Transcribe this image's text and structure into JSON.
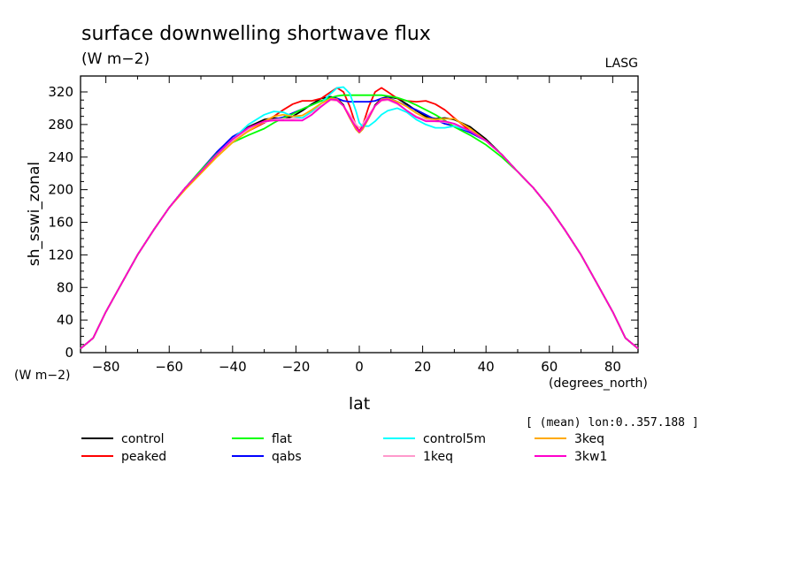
{
  "chart_data": {
    "type": "line",
    "title": "surface downwelling shortwave flux",
    "subtitle": "(W m−2)",
    "source_tag": "LASG",
    "xlabel": "lat",
    "xunits": "(degrees_north)",
    "ylabel": "sh_sswi_zonal",
    "yunits": "(W m−2)",
    "note": "[ (mean) lon:0..357.188 ]",
    "xlim": [
      -88,
      88
    ],
    "ylim": [
      0,
      330
    ],
    "xticks": [
      -80,
      -60,
      -40,
      -20,
      0,
      20,
      40,
      60,
      80
    ],
    "xtick_labels": [
      "−80",
      "−60",
      "−40",
      "−20",
      "0",
      "20",
      "40",
      "60",
      "80"
    ],
    "yticks": [
      0,
      40,
      80,
      120,
      160,
      200,
      240,
      280,
      320
    ],
    "ytick_labels": [
      "0",
      "40",
      "80",
      "120",
      "160",
      "200",
      "240",
      "280",
      "320"
    ],
    "grid": false,
    "legend_position": "bottom",
    "x": [
      -88,
      -84,
      -80,
      -75,
      -70,
      -65,
      -60,
      -55,
      -50,
      -45,
      -40,
      -35,
      -30,
      -27,
      -24,
      -21,
      -18,
      -15,
      -12,
      -9,
      -7,
      -5,
      -3,
      -1,
      0,
      1,
      3,
      5,
      7,
      9,
      12,
      15,
      18,
      21,
      24,
      27,
      30,
      35,
      40,
      45,
      50,
      55,
      60,
      65,
      70,
      75,
      80,
      84,
      88
    ],
    "series": [
      {
        "name": "control",
        "color": "#000000",
        "values": [
          5,
          18,
          50,
          85,
          120,
          150,
          178,
          202,
          222,
          243,
          262,
          277,
          286,
          288,
          287,
          290,
          297,
          305,
          312,
          314,
          312,
          304,
          288,
          274,
          270,
          274,
          288,
          304,
          312,
          314,
          312,
          305,
          297,
          290,
          287,
          288,
          286,
          277,
          262,
          243,
          222,
          202,
          178,
          150,
          120,
          85,
          50,
          18,
          5
        ]
      },
      {
        "name": "peaked",
        "color": "#ff0000",
        "values": [
          5,
          18,
          50,
          85,
          120,
          150,
          178,
          202,
          222,
          243,
          260,
          272,
          282,
          290,
          298,
          305,
          309,
          309,
          312,
          320,
          325,
          320,
          302,
          278,
          272,
          278,
          302,
          320,
          325,
          320,
          312,
          309,
          308,
          309,
          305,
          298,
          288,
          272,
          260,
          243,
          222,
          202,
          178,
          150,
          120,
          85,
          50,
          18,
          5
        ]
      },
      {
        "name": "qabs",
        "color": "#0000ff",
        "values": [
          5,
          18,
          50,
          85,
          120,
          150,
          178,
          202,
          224,
          246,
          265,
          276,
          283,
          286,
          289,
          294,
          299,
          304,
          309,
          313,
          312,
          309,
          308,
          308,
          308,
          308,
          308,
          309,
          312,
          313,
          308,
          303,
          298,
          292,
          286,
          281,
          278,
          270,
          260,
          243,
          222,
          202,
          178,
          150,
          120,
          85,
          50,
          18,
          5
        ]
      },
      {
        "name": "flat",
        "color": "#00ff00",
        "values": [
          5,
          18,
          50,
          85,
          120,
          150,
          178,
          202,
          224,
          244,
          258,
          267,
          275,
          282,
          288,
          293,
          299,
          304,
          309,
          313,
          315,
          316,
          316,
          316,
          316,
          316,
          316,
          316,
          316,
          315,
          313,
          309,
          304,
          298,
          292,
          285,
          277,
          267,
          255,
          240,
          222,
          202,
          178,
          150,
          120,
          85,
          50,
          18,
          5
        ]
      },
      {
        "name": "1keq",
        "color": "#ff99cc",
        "values": [
          5,
          18,
          50,
          85,
          120,
          150,
          178,
          202,
          222,
          243,
          260,
          274,
          283,
          286,
          287,
          287,
          288,
          295,
          303,
          310,
          309,
          303,
          292,
          280,
          276,
          280,
          292,
          303,
          309,
          310,
          305,
          297,
          290,
          286,
          284,
          283,
          281,
          272,
          260,
          243,
          222,
          202,
          178,
          150,
          120,
          85,
          50,
          18,
          5
        ]
      },
      {
        "name": "control5m",
        "color": "#00ffff",
        "values": [
          5,
          18,
          50,
          85,
          120,
          150,
          178,
          202,
          222,
          243,
          262,
          280,
          292,
          296,
          295,
          290,
          288,
          296,
          306,
          318,
          325,
          326,
          318,
          296,
          282,
          278,
          278,
          284,
          292,
          297,
          300,
          295,
          286,
          280,
          276,
          276,
          278,
          272,
          260,
          243,
          222,
          202,
          178,
          150,
          120,
          85,
          50,
          18,
          5
        ]
      },
      {
        "name": "3keq",
        "color": "#ffaa00",
        "values": [
          5,
          18,
          50,
          85,
          120,
          150,
          178,
          200,
          220,
          240,
          258,
          272,
          284,
          290,
          292,
          290,
          291,
          298,
          306,
          312,
          311,
          303,
          288,
          274,
          270,
          274,
          288,
          303,
          311,
          312,
          308,
          302,
          294,
          288,
          286,
          287,
          287,
          275,
          260,
          243,
          222,
          202,
          178,
          150,
          120,
          85,
          50,
          18,
          5
        ]
      },
      {
        "name": "3kw1",
        "color": "#ff00cc",
        "values": [
          5,
          18,
          50,
          85,
          120,
          150,
          178,
          202,
          222,
          243,
          262,
          276,
          284,
          285,
          285,
          285,
          285,
          292,
          302,
          311,
          310,
          303,
          289,
          276,
          271,
          276,
          289,
          303,
          310,
          311,
          306,
          297,
          289,
          284,
          284,
          284,
          281,
          272,
          260,
          243,
          222,
          202,
          178,
          150,
          120,
          85,
          50,
          18,
          5
        ]
      }
    ],
    "legend": [
      {
        "name": "control",
        "color": "#000000"
      },
      {
        "name": "flat",
        "color": "#00ff00"
      },
      {
        "name": "control5m",
        "color": "#00ffff"
      },
      {
        "name": "3keq",
        "color": "#ffaa00"
      },
      {
        "name": "peaked",
        "color": "#ff0000"
      },
      {
        "name": "qabs",
        "color": "#0000ff"
      },
      {
        "name": "1keq",
        "color": "#ff99cc"
      },
      {
        "name": "3kw1",
        "color": "#ff00cc"
      }
    ]
  }
}
